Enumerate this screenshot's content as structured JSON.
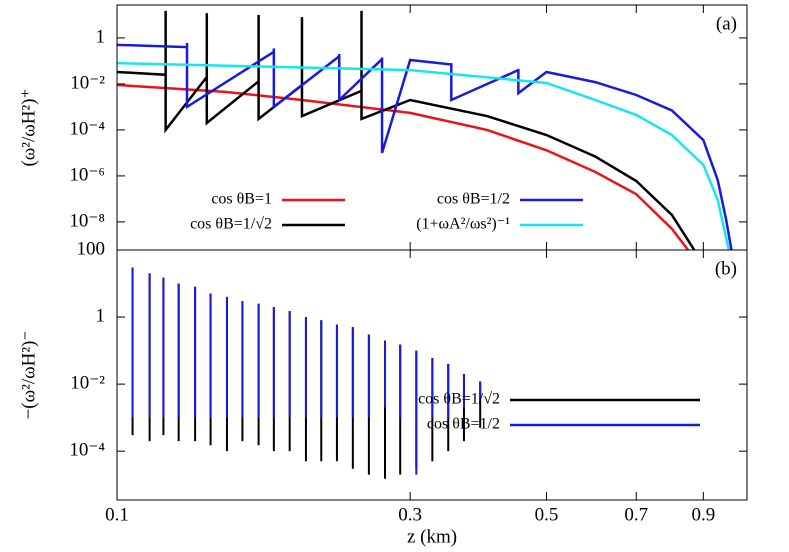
{
  "chart_data": [
    {
      "type": "line",
      "annotation": "(a)",
      "ylabel": "(ω²/ωH²)⁺",
      "xlog": true,
      "ylog": true,
      "xlim": [
        0.1,
        1.06
      ],
      "ylim": [
        6e-10,
        27
      ],
      "legend": "bottom",
      "yticks": [
        {
          "value": 1e-08,
          "label": "10⁻⁸"
        },
        {
          "value": 1e-06,
          "label": "10⁻⁶"
        },
        {
          "value": 0.0001,
          "label": "10⁻⁴"
        },
        {
          "value": 0.01,
          "label": "10⁻²"
        },
        1
      ],
      "series": [
        {
          "name": "cos θB=1",
          "color": "#e8141a",
          "x": [
            0.1,
            0.15,
            0.2,
            0.3,
            0.4,
            0.5,
            0.6,
            0.7,
            0.8,
            0.85
          ],
          "values": [
            0.009,
            0.0045,
            0.002,
            0.00055,
            0.0001,
            1.3e-05,
            1.5e-06,
            1.6e-07,
            5e-09,
            6e-10
          ]
        },
        {
          "name": "cos θB=1/√2",
          "color": "#000000",
          "x": [
            0.1,
            0.12,
            0.12,
            0.12,
            0.14,
            0.14,
            0.14,
            0.17,
            0.17,
            0.17,
            0.2,
            0.2,
            0.2,
            0.25,
            0.25,
            0.25,
            0.3,
            0.4,
            0.5,
            0.6,
            0.7,
            0.8,
            0.87
          ],
          "values": [
            0.033,
            0.025,
            15,
            0.0001,
            0.02,
            12,
            0.0002,
            0.013,
            10,
            0.0003,
            0.009,
            8,
            0.0004,
            0.005,
            15,
            0.0003,
            0.002,
            0.0004,
            6e-05,
            7e-06,
            6e-07,
            2e-08,
            6e-10
          ]
        },
        {
          "name": "cos θB=1/2",
          "color": "#1a1adb",
          "x": [
            0.1,
            0.13,
            0.13,
            0.13,
            0.18,
            0.18,
            0.18,
            0.23,
            0.23,
            0.23,
            0.27,
            0.27,
            0.27,
            0.3,
            0.35,
            0.35,
            0.35,
            0.45,
            0.45,
            0.45,
            0.5,
            0.6,
            0.7,
            0.8,
            0.9,
            0.95,
            0.98,
            1.0
          ],
          "values": [
            0.5,
            0.4,
            0.6,
            0.001,
            0.25,
            0.35,
            0.001,
            0.16,
            0.2,
            0.002,
            0.12,
            0.14,
            1e-05,
            0.11,
            0.07,
            0.08,
            0.002,
            0.04,
            0.045,
            0.004,
            0.033,
            0.012,
            0.0033,
            0.0007,
            3.6e-05,
            6.5e-07,
            1.3e-08,
            6e-10
          ]
        },
        {
          "name": "(1+ωA²/ωs²)⁻¹",
          "color": "#17e6ef",
          "x": [
            0.1,
            0.3,
            0.5,
            0.6,
            0.7,
            0.8,
            0.9,
            0.95,
            0.99
          ],
          "values": [
            0.08,
            0.04,
            0.011,
            0.002,
            0.00045,
            6e-05,
            3e-06,
            9e-08,
            6e-10
          ]
        }
      ]
    },
    {
      "type": "spikes",
      "annotation": "(b)",
      "ylabel": "−(ω²/ωH²)⁻",
      "xlabel": "z (km)",
      "xlog": true,
      "ylog": true,
      "xlim": [
        0.1,
        1.06
      ],
      "ylim": [
        3.5e-06,
        100
      ],
      "legend": "right",
      "xticks": [
        0.1,
        0.3,
        0.5,
        0.7,
        0.9
      ],
      "yticks": [
        {
          "value": 0.0001,
          "label": "10⁻⁴"
        },
        {
          "value": 0.01,
          "label": "10⁻²"
        },
        1,
        100
      ],
      "x": [
        0.106,
        0.113,
        0.119,
        0.126,
        0.134,
        0.142,
        0.151,
        0.16,
        0.17,
        0.18,
        0.191,
        0.203,
        0.215,
        0.228,
        0.242,
        0.257,
        0.273,
        0.289,
        0.307,
        0.326,
        0.346,
        0.367,
        0.39
      ],
      "series": [
        {
          "name": "cos θB=1/√2",
          "color": "#000000",
          "values": [
            30,
            20,
            15,
            10,
            8,
            5,
            4,
            3,
            2.5,
            2,
            1.5,
            1,
            0.8,
            0.6,
            0.5,
            0.3,
            0.2,
            0.15,
            0.1,
            0.06,
            0.04,
            0.02,
            0.012
          ],
          "low": [
            0.0003,
            0.0002,
            0.0003,
            0.0002,
            0.0002,
            0.00015,
            0.0001,
            0.0002,
            0.00015,
            0.0001,
            0.0001,
            5e-05,
            5e-05,
            5e-05,
            3e-05,
            2e-05,
            1.5e-05,
            2e-05,
            3e-05,
            5e-05,
            0.0001,
            0.0002,
            0.0005
          ]
        },
        {
          "name": "cos θB=1/2",
          "color": "#1a1adb",
          "values": [
            30,
            20,
            15,
            10,
            8,
            5,
            4,
            3,
            2.5,
            2,
            1.5,
            1,
            0.8,
            0.6,
            0.5,
            0.3,
            0.2,
            0.15,
            0.1,
            0.06,
            0.04,
            0.02,
            0.012
          ],
          "low": [
            0.001,
            0.001,
            0.001,
            0.001,
            0.001,
            0.001,
            0.001,
            0.001,
            0.001,
            0.001,
            0.001,
            0.001,
            0.001,
            0.001,
            0.001,
            0.001,
            0.002,
            0.001,
            2e-05,
            0.001,
            0.001,
            0.002,
            0.004
          ]
        }
      ]
    }
  ]
}
